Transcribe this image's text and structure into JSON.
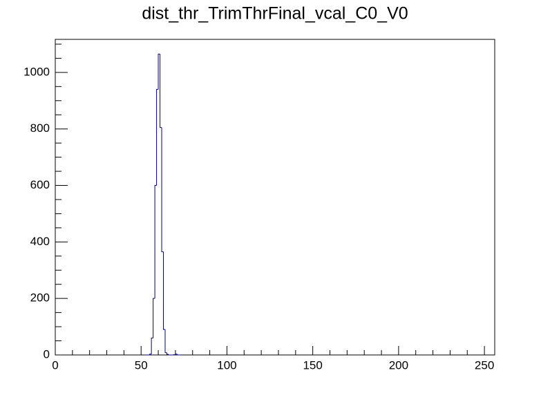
{
  "chart_data": {
    "type": "histogram",
    "title": "dist_thr_TrimThrFinal_vcal_C0_V0",
    "bins": [
      52,
      53,
      54,
      55,
      56,
      57,
      58,
      59,
      60,
      61,
      62,
      63,
      64,
      65,
      66,
      67,
      68,
      69,
      70,
      71,
      72,
      73
    ],
    "counts": [
      0,
      0,
      0,
      3,
      60,
      200,
      600,
      940,
      1065,
      805,
      365,
      90,
      8,
      2,
      0,
      0,
      0,
      1,
      3,
      0,
      0
    ],
    "color": "#000080",
    "xlim": [
      0,
      256
    ],
    "xticks": [
      0,
      50,
      100,
      150,
      200,
      250
    ],
    "xminorticks": [
      10,
      20,
      30,
      40,
      60,
      70,
      80,
      90,
      110,
      120,
      130,
      140,
      160,
      170,
      180,
      190,
      210,
      220,
      230,
      240
    ],
    "ylim": [
      0,
      1117
    ],
    "yticks": [
      0,
      200,
      400,
      600,
      800,
      1000
    ],
    "yminorticks": [
      50,
      100,
      150,
      250,
      300,
      350,
      450,
      500,
      550,
      650,
      700,
      750,
      850,
      900,
      950,
      1050,
      1100
    ]
  }
}
